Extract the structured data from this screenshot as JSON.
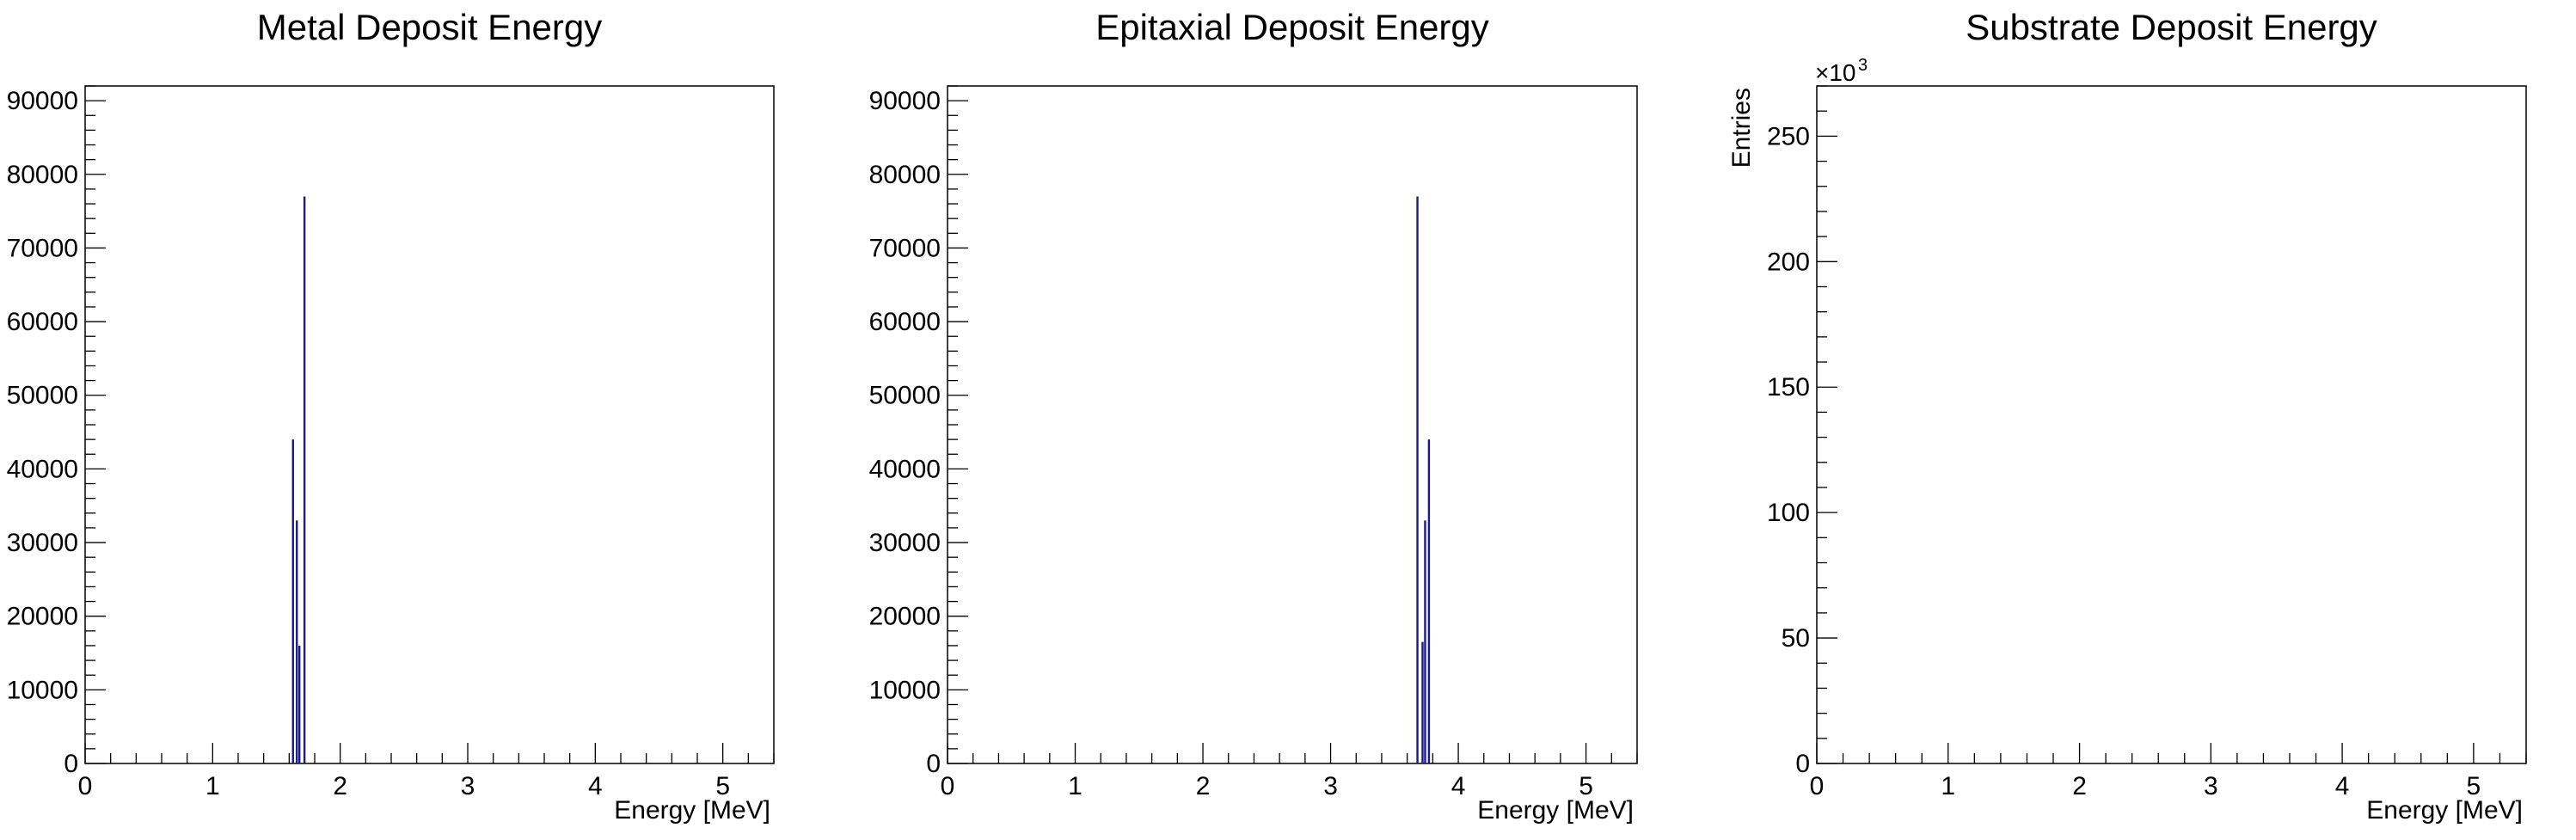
{
  "chart_data": [
    {
      "type": "bar",
      "title": "Metal Deposit Energy",
      "xlabel": "Energy [MeV]",
      "ylabel": "",
      "xlim": [
        0,
        5.4
      ],
      "ylim": [
        0,
        92000
      ],
      "x_ticks": [
        "0",
        "1",
        "2",
        "3",
        "4",
        "5"
      ],
      "y_ticks": [
        "0",
        "10000",
        "20000",
        "30000",
        "40000",
        "50000",
        "60000",
        "70000",
        "80000",
        "90000"
      ],
      "exponent_label": "",
      "bars": [
        {
          "x": 1.63,
          "value": 44000
        },
        {
          "x": 1.66,
          "value": 33000
        },
        {
          "x": 1.68,
          "value": 16000
        },
        {
          "x": 1.72,
          "value": 77000
        }
      ]
    },
    {
      "type": "bar",
      "title": "Epitaxial Deposit Energy",
      "xlabel": "Energy [MeV]",
      "ylabel": "",
      "xlim": [
        0,
        5.4
      ],
      "ylim": [
        0,
        92000
      ],
      "x_ticks": [
        "0",
        "1",
        "2",
        "3",
        "4",
        "5"
      ],
      "y_ticks": [
        "0",
        "10000",
        "20000",
        "30000",
        "40000",
        "50000",
        "60000",
        "70000",
        "80000",
        "90000"
      ],
      "exponent_label": "",
      "bars": [
        {
          "x": 3.68,
          "value": 77000
        },
        {
          "x": 3.72,
          "value": 16500
        },
        {
          "x": 3.74,
          "value": 33000
        },
        {
          "x": 3.77,
          "value": 44000
        }
      ]
    },
    {
      "type": "bar",
      "title": "Substrate Deposit Energy",
      "xlabel": "Energy [MeV]",
      "ylabel": "Entries",
      "xlim": [
        0,
        5.4
      ],
      "ylim": [
        0,
        270
      ],
      "x_ticks": [
        "0",
        "1",
        "2",
        "3",
        "4",
        "5"
      ],
      "y_ticks": [
        "0",
        "50",
        "100",
        "150",
        "200",
        "250"
      ],
      "exponent_label": "×10",
      "exponent_sup": "3",
      "bars": []
    }
  ],
  "colors": {
    "series": "#1a1a8c",
    "axis": "#000000"
  }
}
